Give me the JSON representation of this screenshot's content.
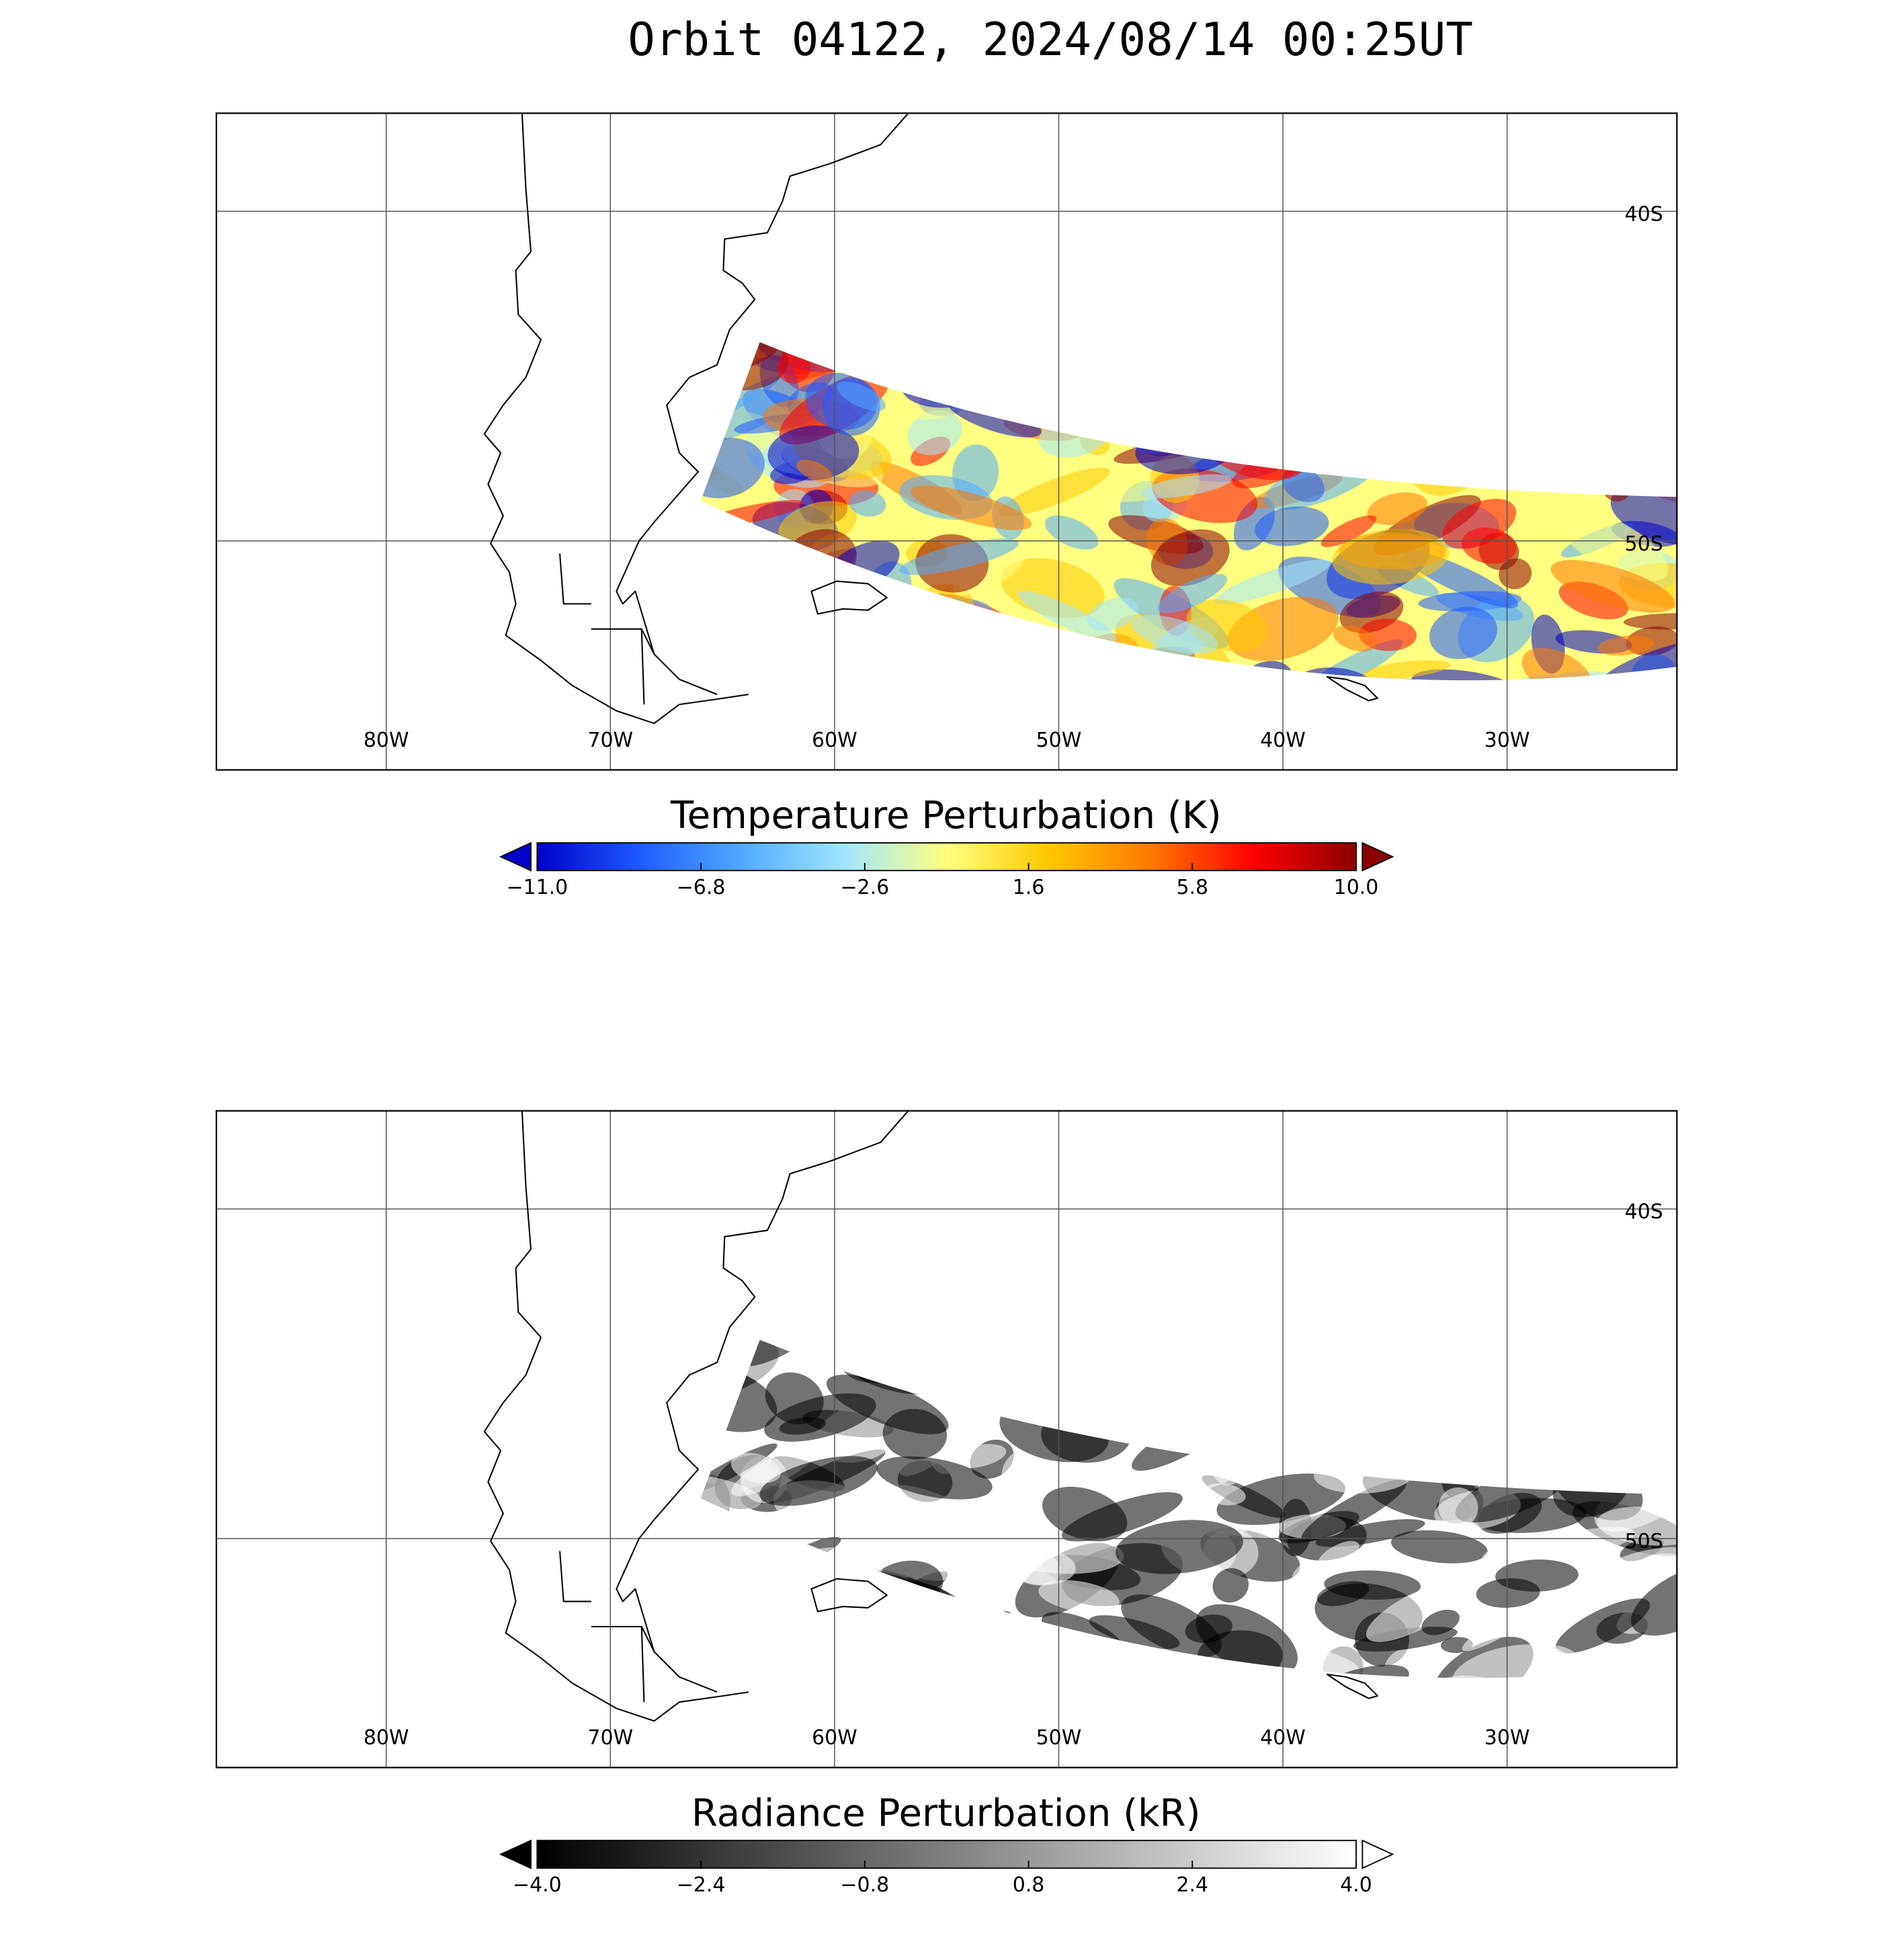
{
  "title": "Orbit 04122, 2024/08/14 00:25UT",
  "panels": [
    {
      "lon_ticks": [
        {
          "value": -80,
          "label": "80W"
        },
        {
          "value": -70,
          "label": "70W"
        },
        {
          "value": -60,
          "label": "60W"
        },
        {
          "value": -50,
          "label": "50W"
        },
        {
          "value": -40,
          "label": "40W"
        },
        {
          "value": -30,
          "label": "30W"
        }
      ],
      "lat_ticks": [
        {
          "value": -40,
          "label": "40S"
        },
        {
          "value": -50,
          "label": "50S"
        }
      ],
      "colorbar": {
        "title": "Temperature Perturbation (K)",
        "range": [
          -11,
          10
        ],
        "ticks": [
          {
            "value": -11,
            "label": "−11.0"
          },
          {
            "value": -6.8,
            "label": "−6.8"
          },
          {
            "value": -2.6,
            "label": "−2.6"
          },
          {
            "value": 1.6,
            "label": "1.6"
          },
          {
            "value": 5.8,
            "label": "5.8"
          },
          {
            "value": 10,
            "label": "10.0"
          }
        ],
        "colors": [
          "#0000c8",
          "#1e5aff",
          "#50aaff",
          "#a0e6ff",
          "#ffff80",
          "#ffc800",
          "#ff7800",
          "#ff0000",
          "#8c0000"
        ]
      }
    },
    {
      "lon_ticks": [
        {
          "value": -80,
          "label": "80W"
        },
        {
          "value": -70,
          "label": "70W"
        },
        {
          "value": -60,
          "label": "60W"
        },
        {
          "value": -50,
          "label": "50W"
        },
        {
          "value": -40,
          "label": "40W"
        },
        {
          "value": -30,
          "label": "30W"
        }
      ],
      "lat_ticks": [
        {
          "value": -40,
          "label": "40S"
        },
        {
          "value": -50,
          "label": "50S"
        }
      ],
      "colorbar": {
        "title": "Radiance Perturbation (kR)",
        "range": [
          -4,
          4
        ],
        "ticks": [
          {
            "value": -4,
            "label": "−4.0"
          },
          {
            "value": -2.4,
            "label": "−2.4"
          },
          {
            "value": -0.8,
            "label": "−0.8"
          },
          {
            "value": 0.8,
            "label": "0.8"
          },
          {
            "value": 2.4,
            "label": "2.4"
          },
          {
            "value": 4,
            "label": "4.0"
          }
        ],
        "colors": [
          "#000000",
          "#ffffff"
        ]
      }
    }
  ]
}
